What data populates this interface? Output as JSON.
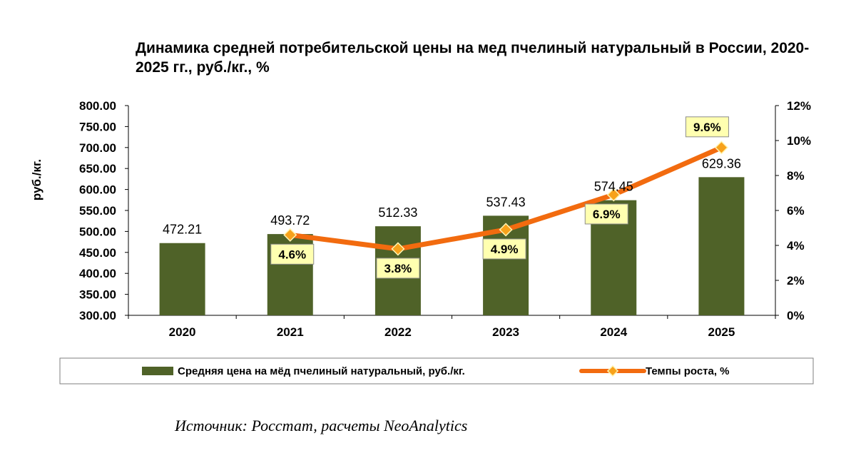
{
  "chart_data": {
    "type": "bar",
    "title": "Динамика средней потребительской цены на мед пчелиный натуральный в России, 2020-2025 гг., руб./кг., %",
    "ylabel": "руб./кг.",
    "categories": [
      "2020",
      "2021",
      "2022",
      "2023",
      "2024",
      "2025"
    ],
    "ylim": [
      300,
      800
    ],
    "y_ticks": [
      "300.00",
      "350.00",
      "400.00",
      "450.00",
      "500.00",
      "550.00",
      "600.00",
      "650.00",
      "700.00",
      "750.00",
      "800.00"
    ],
    "y2lim": [
      0,
      12
    ],
    "y2_ticks": [
      "0%",
      "2%",
      "4%",
      "6%",
      "8%",
      "10%",
      "12%"
    ],
    "series": [
      {
        "name": "Средняя цена на мёд пчелиный натуральный, руб./кг.",
        "type": "bar",
        "color": "#4f6228",
        "values": [
          472.21,
          493.72,
          512.33,
          537.43,
          574.45,
          629.36
        ],
        "labels": [
          "472.21",
          "493.72",
          "512.33",
          "537.43",
          "574.45",
          "629.36"
        ]
      },
      {
        "name": "Темпы роста, %",
        "type": "line",
        "axis": "secondary",
        "color": "#f26b0f",
        "marker_color": "#f7a21b",
        "label_bg": "#ffffb0",
        "values": [
          null,
          4.6,
          3.8,
          4.9,
          6.9,
          9.6
        ],
        "labels": [
          "",
          "4.6%",
          "3.8%",
          "4.9%",
          "6.9%",
          "9.6%"
        ]
      }
    ],
    "legend_position": "bottom",
    "grid": false
  },
  "source": "Источник: Росстат, расчеты NeoAnalytics"
}
